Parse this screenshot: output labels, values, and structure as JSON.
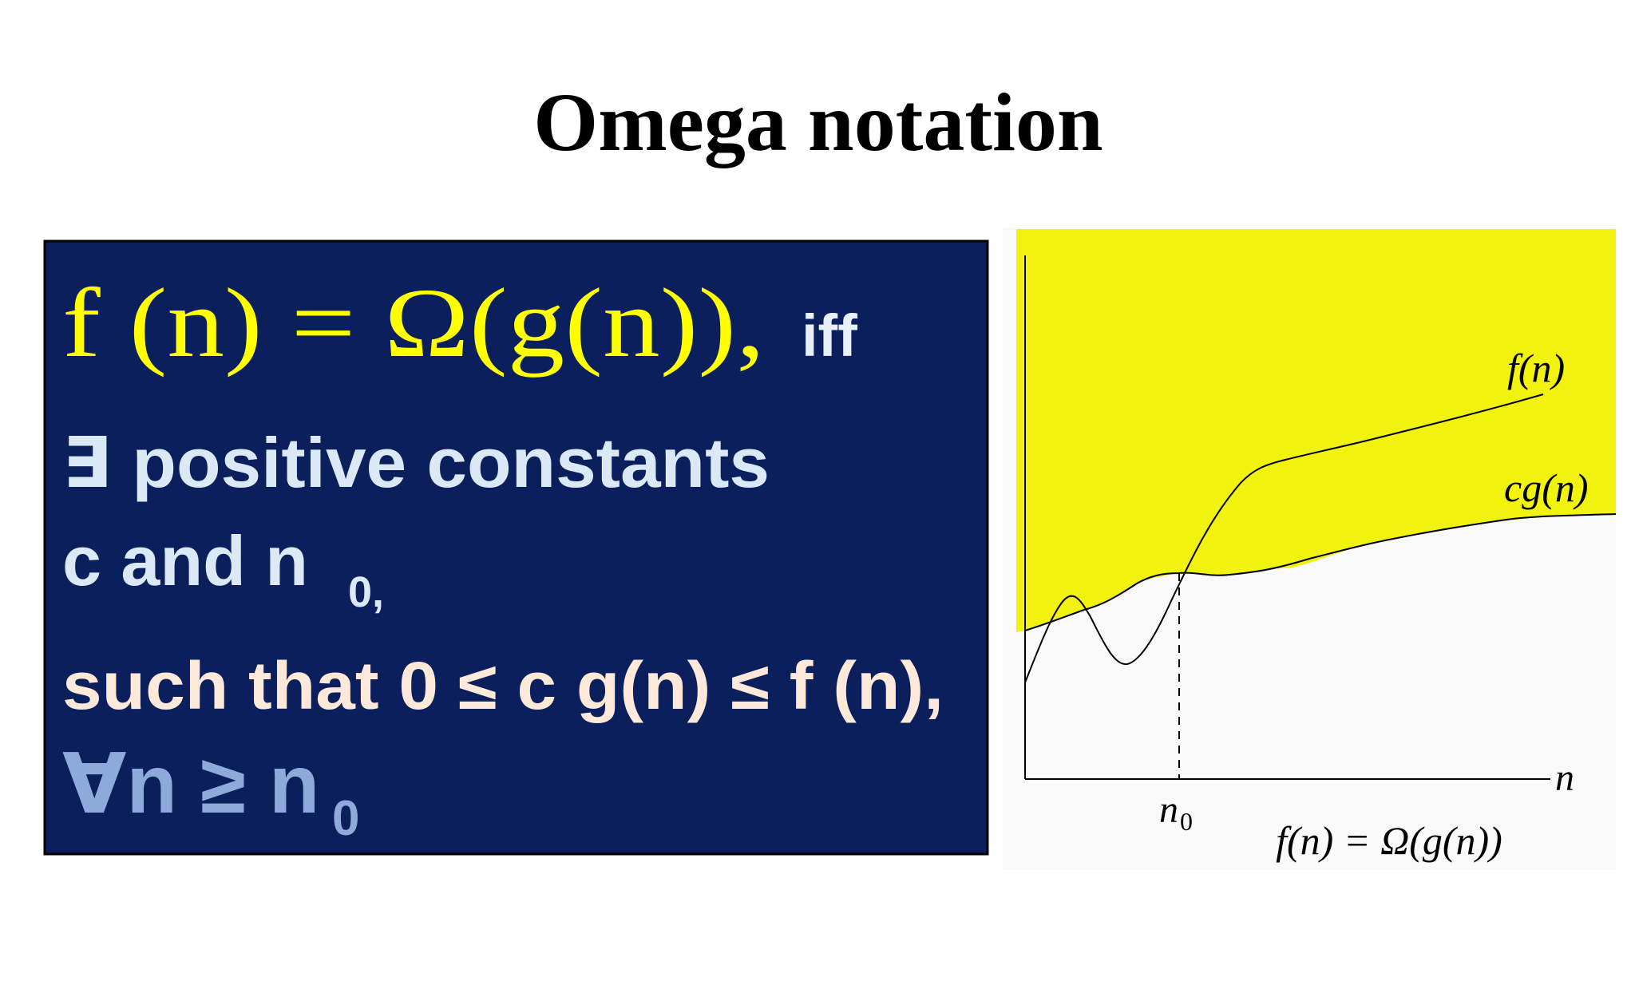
{
  "title": "Omega notation",
  "definition": {
    "line1": "f (n) = Ω(g(n)),",
    "line1_suffix": "iff",
    "line2": "∃ positive constants",
    "line3": "c  and  n",
    "line3_sub": "0,",
    "line4": "such that 0 ≤ c g(n) ≤ f (n),",
    "line5": "∀n ≥  n",
    "line5_sub": "0"
  },
  "graph": {
    "f_label": "f(n)",
    "cg_label": "cg(n)",
    "x_label": "n",
    "n0_label": "n",
    "n0_sub": "0",
    "caption": "f(n) = Ω(g(n))"
  }
}
